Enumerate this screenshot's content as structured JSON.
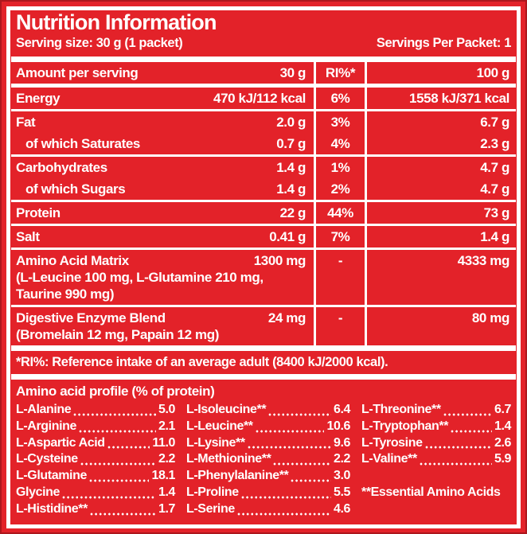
{
  "colors": {
    "red": "#e32229",
    "white": "#ffffff"
  },
  "header": {
    "title": "Nutrition Information",
    "serving_size": "Serving size: 30 g (1 packet)",
    "servings_per_packet": "Servings Per Packet: 1"
  },
  "table": {
    "columns": {
      "label": "Amount per serving",
      "per_serving": "30 g",
      "ri": "RI%*",
      "per_100g": "100 g"
    },
    "rows": [
      {
        "label": "Energy",
        "per_serving": "470 kJ/112 kcal",
        "ri": "6%",
        "per_100g": "1558 kJ/371 kcal",
        "indent": false,
        "sublines": [],
        "sep_after": true
      },
      {
        "label": "Fat",
        "per_serving": "2.0 g",
        "ri": "3%",
        "per_100g": "6.7 g",
        "indent": false,
        "sublines": [],
        "sep_after": false
      },
      {
        "label": "of which Saturates",
        "per_serving": "0.7 g",
        "ri": "4%",
        "per_100g": "2.3 g",
        "indent": true,
        "sublines": [],
        "sep_after": true
      },
      {
        "label": "Carbohydrates",
        "per_serving": "1.4 g",
        "ri": "1%",
        "per_100g": "4.7 g",
        "indent": false,
        "sublines": [],
        "sep_after": false
      },
      {
        "label": "of which Sugars",
        "per_serving": "1.4 g",
        "ri": "2%",
        "per_100g": "4.7 g",
        "indent": true,
        "sublines": [],
        "sep_after": true
      },
      {
        "label": "Protein",
        "per_serving": "22 g",
        "ri": "44%",
        "per_100g": "73 g",
        "indent": false,
        "sublines": [],
        "sep_after": true
      },
      {
        "label": "Salt",
        "per_serving": "0.41 g",
        "ri": "7%",
        "per_100g": "1.4 g",
        "indent": false,
        "sublines": [],
        "sep_after": true
      },
      {
        "label": "Amino Acid Matrix",
        "per_serving": "1300 mg",
        "ri": "-",
        "per_100g": "4333 mg",
        "indent": false,
        "sublines": [
          "(L-Leucine 100 mg, L-Glutamine 210 mg,",
          "Taurine 990 mg)"
        ],
        "sep_after": true
      },
      {
        "label": "Digestive Enzyme Blend",
        "per_serving": "24 mg",
        "ri": "-",
        "per_100g": "80 mg",
        "indent": false,
        "sublines": [
          "(Bromelain 12 mg, Papain 12 mg)"
        ],
        "sep_after": false
      }
    ]
  },
  "footnote": "*RI%: Reference intake of an average adult (8400 kJ/2000 kcal).",
  "amino_profile": {
    "title": "Amino acid profile (% of protein)",
    "columns": [
      [
        {
          "label": "L-Alanine",
          "value": "5.0"
        },
        {
          "label": "L-Arginine",
          "value": "2.1"
        },
        {
          "label": "L-Aspartic Acid",
          "value": "11.0"
        },
        {
          "label": "L-Cysteine",
          "value": "2.2"
        },
        {
          "label": "L-Glutamine",
          "value": "18.1"
        },
        {
          "label": "Glycine",
          "value": "1.4"
        },
        {
          "label": "L-Histidine**",
          "value": "1.7"
        }
      ],
      [
        {
          "label": "L-Isoleucine**",
          "value": "6.4"
        },
        {
          "label": "L-Leucine**",
          "value": "10.6"
        },
        {
          "label": "L-Lysine**",
          "value": "9.6"
        },
        {
          "label": "L-Methionine**",
          "value": "2.2"
        },
        {
          "label": "L-Phenylalanine**",
          "value": "3.0"
        },
        {
          "label": "L-Proline",
          "value": "5.5"
        },
        {
          "label": "L-Serine",
          "value": "4.6"
        }
      ],
      [
        {
          "label": "L-Threonine**",
          "value": "6.7"
        },
        {
          "label": "L-Tryptophan**",
          "value": "1.4"
        },
        {
          "label": "L-Tyrosine",
          "value": "2.6"
        },
        {
          "label": "L-Valine**",
          "value": "5.9"
        },
        {
          "label": "",
          "value": null,
          "spacer": true
        },
        {
          "label": "**Essential Amino Acids",
          "value": null,
          "note": true
        }
      ]
    ]
  }
}
